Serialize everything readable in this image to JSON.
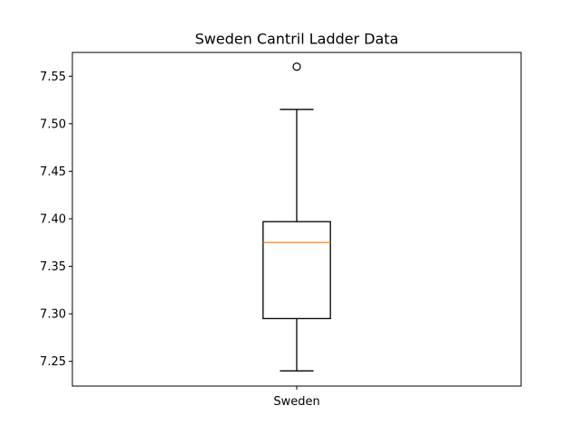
{
  "chart_data": {
    "type": "boxplot",
    "title": "Sweden Cantril Ladder Data",
    "xlabel": "",
    "ylabel": "",
    "categories": [
      "Sweden"
    ],
    "boxes": [
      {
        "name": "Sweden",
        "whisker_low": 7.24,
        "q1": 7.295,
        "median": 7.375,
        "q3": 7.397,
        "whisker_high": 7.515,
        "outliers": [
          7.56
        ]
      }
    ],
    "yticks": [
      "7.25",
      "7.30",
      "7.35",
      "7.40",
      "7.45",
      "7.50",
      "7.55"
    ],
    "ylim": [
      7.224,
      7.575
    ],
    "grid": false,
    "colors": {
      "box": "#000000",
      "median": "#ff7f0e",
      "outlier": "#000000"
    }
  }
}
